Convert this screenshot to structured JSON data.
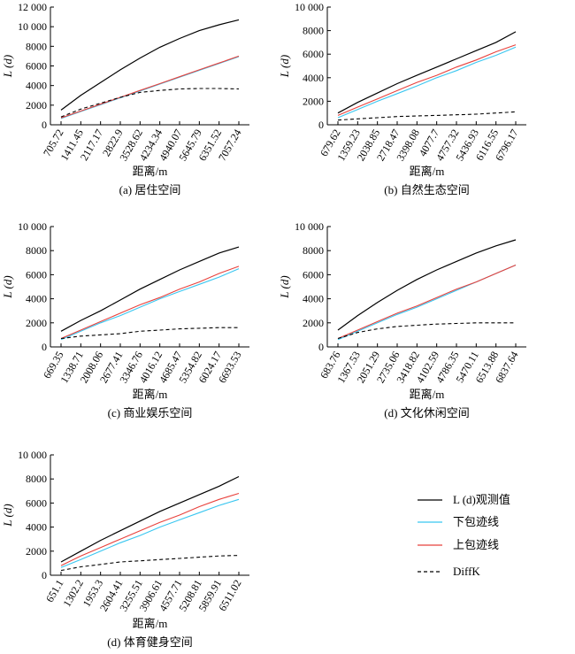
{
  "chart_data": [
    {
      "type": "line",
      "caption": "(a) 居住空间",
      "xlabel": "距离/m",
      "ylabel": "L (d)",
      "x": [
        "705.72",
        "1411.45",
        "2117.17",
        "2822.9",
        "3528.62",
        "4234.34",
        "4940.07",
        "5645.79",
        "6351.52",
        "7057.24"
      ],
      "ylim": [
        0,
        12000
      ],
      "yticks": [
        "0",
        "2000",
        "4000",
        "6000",
        "8000",
        "10 000",
        "12 000"
      ],
      "series": [
        {
          "name": "L (d)观测值",
          "values": [
            1500,
            3000,
            4300,
            5600,
            6800,
            7900,
            8800,
            9600,
            10200,
            10700
          ]
        },
        {
          "name": "下包迹线",
          "values": [
            650,
            1350,
            2050,
            2750,
            3450,
            4150,
            4850,
            5550,
            6250,
            6950
          ]
        },
        {
          "name": "上包迹线",
          "values": [
            700,
            1400,
            2100,
            2800,
            3500,
            4200,
            4900,
            5600,
            6300,
            7000
          ]
        },
        {
          "name": "DiffK",
          "values": [
            800,
            1600,
            2200,
            2800,
            3300,
            3500,
            3650,
            3700,
            3700,
            3650
          ]
        }
      ]
    },
    {
      "type": "line",
      "caption": "(b) 自然生态空间",
      "xlabel": "距离/m",
      "ylabel": "L (d)",
      "x": [
        "679.62",
        "1359.23",
        "2038.85",
        "2718.47",
        "3398.08",
        "4077.7",
        "4757.32",
        "5436.93",
        "6116.55",
        "6796.17"
      ],
      "ylim": [
        0,
        10000
      ],
      "yticks": [
        "0",
        "2000",
        "4000",
        "6000",
        "8000",
        "10 000"
      ],
      "series": [
        {
          "name": "L (d)观测值",
          "values": [
            1000,
            1900,
            2700,
            3500,
            4200,
            4900,
            5600,
            6300,
            7000,
            7900
          ]
        },
        {
          "name": "下包迹线",
          "values": [
            600,
            1300,
            2000,
            2650,
            3300,
            4000,
            4600,
            5300,
            5900,
            6600
          ]
        },
        {
          "name": "上包迹线",
          "values": [
            800,
            1500,
            2200,
            2900,
            3600,
            4200,
            4900,
            5500,
            6200,
            6800
          ]
        },
        {
          "name": "DiffK",
          "values": [
            400,
            500,
            600,
            700,
            750,
            800,
            850,
            900,
            1000,
            1100
          ]
        }
      ]
    },
    {
      "type": "line",
      "caption": "(c) 商业娱乐空间",
      "xlabel": "距离/m",
      "ylabel": "L (d)",
      "x": [
        "669.35",
        "1338.71",
        "2008.06",
        "2677.41",
        "3346.76",
        "4016.12",
        "4685.47",
        "5354.82",
        "6024.17",
        "6693.53"
      ],
      "ylim": [
        0,
        10000
      ],
      "yticks": [
        "0",
        "2000",
        "4000",
        "6000",
        "8000",
        "10 000"
      ],
      "series": [
        {
          "name": "L (d)观测值",
          "values": [
            1300,
            2200,
            3000,
            3900,
            4800,
            5600,
            6400,
            7100,
            7800,
            8300
          ]
        },
        {
          "name": "下包迹线",
          "values": [
            600,
            1300,
            2000,
            2600,
            3300,
            4000,
            4600,
            5200,
            5800,
            6500
          ]
        },
        {
          "name": "上包迹线",
          "values": [
            700,
            1400,
            2100,
            2800,
            3500,
            4100,
            4800,
            5400,
            6100,
            6700
          ]
        },
        {
          "name": "DiffK",
          "values": [
            700,
            900,
            1000,
            1100,
            1300,
            1400,
            1500,
            1550,
            1600,
            1600
          ]
        }
      ]
    },
    {
      "type": "line",
      "caption": "(d) 文化休闲空间",
      "xlabel": "距离/m",
      "ylabel": "L (d)",
      "x": [
        "683.76",
        "1367.53",
        "2051.29",
        "2735.06",
        "3418.82",
        "4102.59",
        "4786.35",
        "5470.11",
        "6513.88",
        "6837.64"
      ],
      "ylim": [
        0,
        10000
      ],
      "yticks": [
        "0",
        "2000",
        "4000",
        "6000",
        "8000",
        "10 000"
      ],
      "series": [
        {
          "name": "L (d)观测值",
          "values": [
            1400,
            2600,
            3700,
            4700,
            5600,
            6400,
            7100,
            7800,
            8400,
            8900
          ]
        },
        {
          "name": "下包迹线",
          "values": [
            600,
            1300,
            2000,
            2700,
            3300,
            4000,
            4700,
            5400,
            6100,
            6800
          ]
        },
        {
          "name": "上包迹线",
          "values": [
            700,
            1400,
            2100,
            2800,
            3400,
            4100,
            4800,
            5400,
            6100,
            6800
          ]
        },
        {
          "name": "DiffK",
          "values": [
            700,
            1200,
            1500,
            1700,
            1800,
            1900,
            1950,
            2000,
            2000,
            2000
          ]
        }
      ]
    },
    {
      "type": "line",
      "caption": "(d) 体育健身空间",
      "xlabel": "距离/m",
      "ylabel": "L (d)",
      "x": [
        "651.1",
        "1302.2",
        "1953.3",
        "2604.41",
        "3255.51",
        "3906.61",
        "4557.71",
        "5208.81",
        "5859.91",
        "6511.02"
      ],
      "ylim": [
        0,
        10000
      ],
      "yticks": [
        "0",
        "2000",
        "4000",
        "6000",
        "8000",
        "10 000"
      ],
      "series": [
        {
          "name": "L (d)观测值",
          "values": [
            1100,
            2000,
            2900,
            3700,
            4500,
            5300,
            6000,
            6700,
            7400,
            8200
          ]
        },
        {
          "name": "下包迹线",
          "values": [
            650,
            1300,
            2000,
            2700,
            3300,
            4000,
            4600,
            5200,
            5800,
            6300
          ]
        },
        {
          "name": "上包迹线",
          "values": [
            800,
            1600,
            2300,
            3000,
            3700,
            4400,
            5000,
            5700,
            6300,
            6800
          ]
        },
        {
          "name": "DiffK",
          "values": [
            400,
            700,
            900,
            1100,
            1200,
            1300,
            1400,
            1500,
            1600,
            1650
          ]
        }
      ]
    }
  ],
  "legend": [
    {
      "label": "L (d)观测值",
      "color": "#000000",
      "dash": false
    },
    {
      "label": "下包迹线",
      "color": "#39c6f0",
      "dash": false
    },
    {
      "label": "上包迹线",
      "color": "#e8413c",
      "dash": false
    },
    {
      "label": "DiffK",
      "color": "#000000",
      "dash": true
    }
  ],
  "colors": {
    "observed": "#000000",
    "lower": "#39c6f0",
    "upper": "#e8413c",
    "diffk": "#000000"
  }
}
